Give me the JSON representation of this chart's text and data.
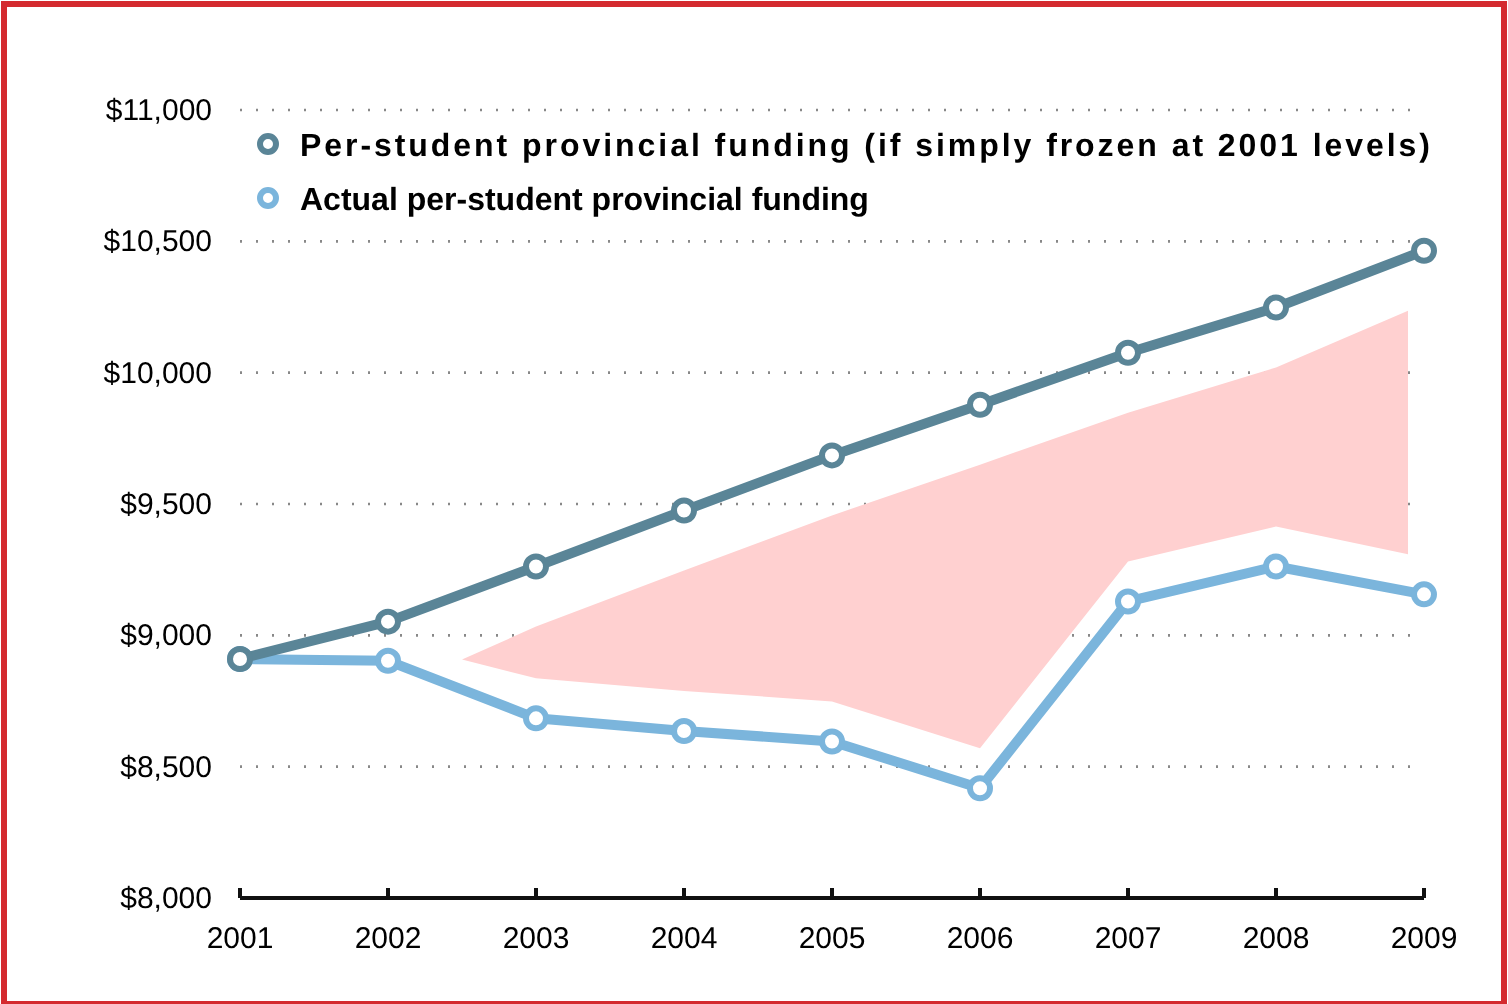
{
  "chart_data": {
    "type": "line",
    "x": [
      2001,
      2002,
      2003,
      2004,
      2005,
      2006,
      2007,
      2008,
      2009
    ],
    "series": [
      {
        "name": "Per-student provincial funding (if simply frozen at 2001 levels)",
        "color": "#5a8597",
        "values": [
          8910,
          9052,
          9262,
          9475,
          9685,
          9878,
          10076,
          10248,
          10464
        ]
      },
      {
        "name": "Actual per-student provincial funding",
        "color": "#7bb5dc",
        "values": [
          8910,
          8903,
          8684,
          8636,
          8596,
          8418,
          9129,
          9262,
          9156
        ]
      }
    ],
    "xlim": [
      2001,
      2009
    ],
    "xticks": [
      2001,
      2002,
      2003,
      2004,
      2005,
      2006,
      2007,
      2008,
      2009
    ],
    "ylim": [
      8000,
      11000
    ],
    "yticks": [
      {
        "value": 8000,
        "label": "$8,000"
      },
      {
        "value": 8500,
        "label": "$8,500"
      },
      {
        "value": 9000,
        "label": "$9,000"
      },
      {
        "value": 9500,
        "label": "$9,500"
      },
      {
        "value": 10000,
        "label": "$10,000"
      },
      {
        "value": 10500,
        "label": "$10,500"
      },
      {
        "value": 11000,
        "label": "$11,000"
      }
    ],
    "grid": "y",
    "legend": "top left",
    "marker": "circle",
    "line_style": "solid"
  }
}
